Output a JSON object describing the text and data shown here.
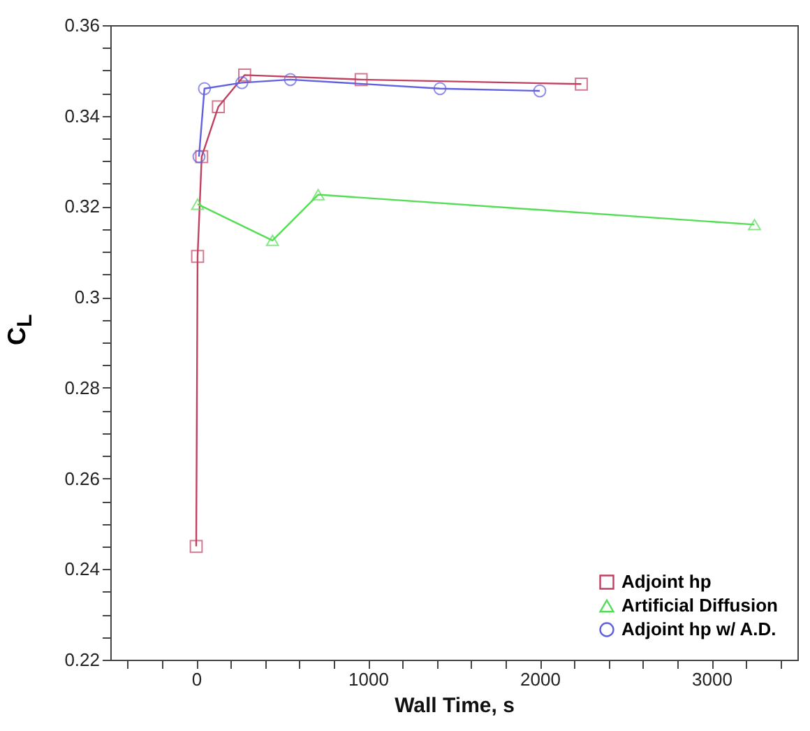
{
  "chart_data": {
    "type": "line",
    "xlabel": "Wall Time, s",
    "ylabel": "C$_{L}$",
    "xlim": [
      -500,
      3500
    ],
    "ylim": [
      0.22,
      0.36
    ],
    "xticks": [
      {
        "value": -400,
        "label": null
      },
      {
        "value": -200,
        "label": null
      },
      0,
      {
        "value": 200,
        "label": null
      },
      {
        "value": 400,
        "label": null
      },
      {
        "value": 600,
        "label": null
      },
      {
        "value": 800,
        "label": null
      },
      1000,
      {
        "value": 1200,
        "label": null
      },
      {
        "value": 1400,
        "label": null
      },
      {
        "value": 1600,
        "label": null
      },
      {
        "value": 1800,
        "label": null
      },
      2000,
      {
        "value": 2200,
        "label": null
      },
      {
        "value": 2400,
        "label": null
      },
      {
        "value": 2600,
        "label": null
      },
      {
        "value": 2800,
        "label": null
      },
      3000,
      {
        "value": 3200,
        "label": null
      },
      {
        "value": 3400,
        "label": null
      }
    ],
    "yticks": [
      0.22,
      {
        "value": 0.225,
        "label": null
      },
      {
        "value": 0.23,
        "label": null
      },
      {
        "value": 0.235,
        "label": null
      },
      0.24,
      {
        "value": 0.245,
        "label": null
      },
      {
        "value": 0.25,
        "label": null
      },
      {
        "value": 0.255,
        "label": null
      },
      0.26,
      {
        "value": 0.265,
        "label": null
      },
      {
        "value": 0.27,
        "label": null
      },
      {
        "value": 0.275,
        "label": null
      },
      0.28,
      {
        "value": 0.285,
        "label": null
      },
      {
        "value": 0.29,
        "label": null
      },
      {
        "value": 0.295,
        "label": null
      },
      0.3,
      {
        "value": 0.305,
        "label": null
      },
      {
        "value": 0.31,
        "label": null
      },
      {
        "value": 0.315,
        "label": null
      },
      0.32,
      {
        "value": 0.325,
        "label": null
      },
      {
        "value": 0.33,
        "label": null
      },
      {
        "value": 0.335,
        "label": null
      },
      0.34,
      {
        "value": 0.345,
        "label": null
      },
      {
        "value": 0.35,
        "label": null
      },
      {
        "value": 0.355,
        "label": null
      },
      0.36
    ],
    "grid": false,
    "legend": "bottom right",
    "line_style": "solid",
    "series": [
      {
        "name": "Adjoint hp",
        "color": "#c04060",
        "marker": "square",
        "x": [
          0,
          8,
          32,
          129,
          282,
          960,
          2242
        ],
        "values": [
          0.245,
          0.309,
          0.331,
          0.342,
          0.349,
          0.348,
          0.347
        ]
      },
      {
        "name": "Artificial Diffusion",
        "color": "#55dd55",
        "marker": "triangle",
        "x": [
          8,
          444,
          710,
          3250
        ],
        "values": [
          0.3205,
          0.3125,
          0.3226,
          0.316
        ]
      },
      {
        "name": "Adjoint hp w/ A.D.",
        "color": "#6060e0",
        "marker": "circle",
        "x": [
          16,
          48,
          266,
          548,
          1419,
          2000
        ],
        "values": [
          0.331,
          0.346,
          0.3473,
          0.348,
          0.346,
          0.3455
        ]
      }
    ]
  }
}
